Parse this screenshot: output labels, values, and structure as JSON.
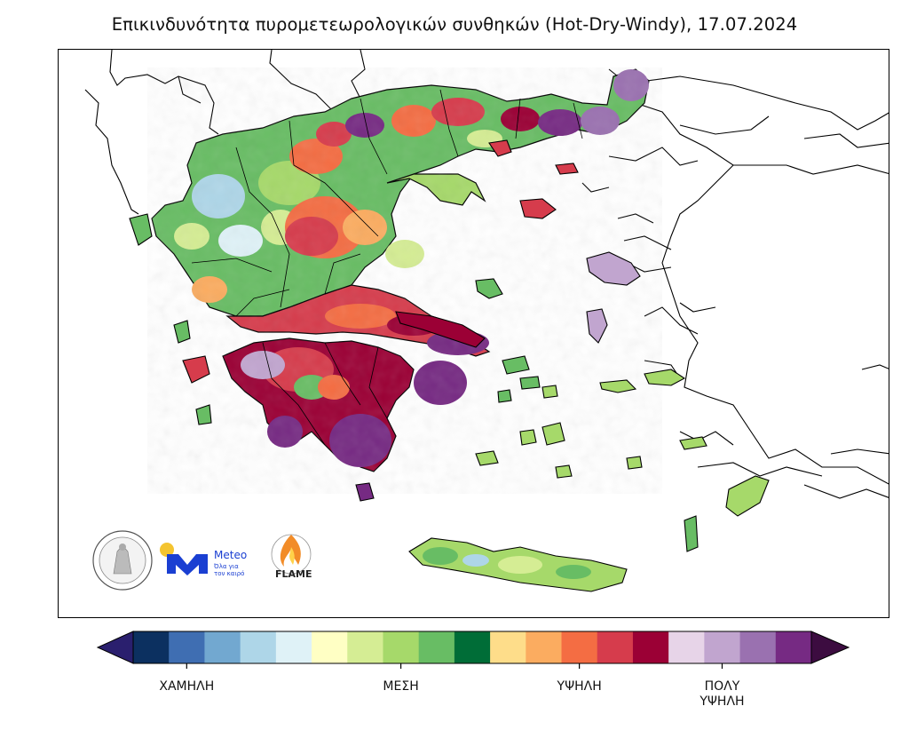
{
  "title": "Επικινδυνότητα πυρομετεωρολογικών συνθηκών (Hot-Dry-Windy), 17.07.2024",
  "colorbar": {
    "colors": [
      "#2a1f6e",
      "#0c3060",
      "#3f6eb2",
      "#72a8d0",
      "#aed6e8",
      "#dff2f7",
      "#ffffc4",
      "#d5ed94",
      "#a6d96a",
      "#68bd64",
      "#006d37",
      "#fedd8a",
      "#fbac60",
      "#f46d43",
      "#d63c4c",
      "#9b0035",
      "#e7d4e8",
      "#c1a5cf",
      "#9a71b0",
      "#762a83",
      "#3c0c40"
    ],
    "labels": [
      {
        "text": "ΧΑΜΗΛΗ",
        "index": 2
      },
      {
        "text": "ΜΕΣΗ",
        "index": 8
      },
      {
        "text": "ΥΨΗΛΗ",
        "index": 13
      },
      {
        "text": "ΠΟΛΥ\nΥΨΗΛΗ",
        "index": 17
      }
    ]
  },
  "logos": {
    "meteo_name": "Meteo",
    "meteo_tagline_1": "Όλα για",
    "meteo_tagline_2": "τον καιρό",
    "flame": "FLAME"
  }
}
